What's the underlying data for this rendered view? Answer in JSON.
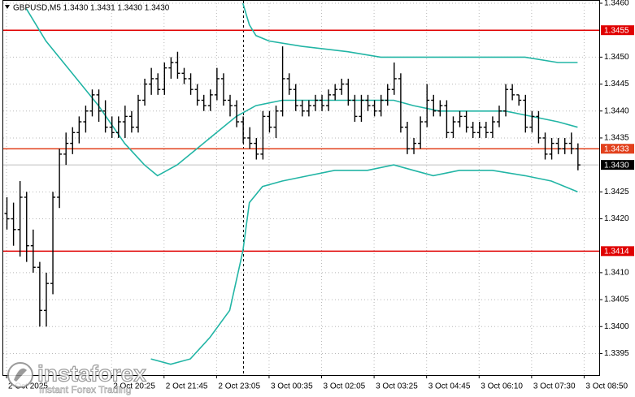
{
  "chart_data": {
    "type": "ohlc",
    "title": "GBPUSD,M5  1.3430 1.3431 1.3430 1.3430",
    "bar_color": "#000000",
    "ohlc": [
      [
        1.3421,
        1.3424,
        1.3418,
        1.342
      ],
      [
        1.342,
        1.3423,
        1.3415,
        1.3418
      ],
      [
        1.3418,
        1.3427,
        1.3413,
        1.3424
      ],
      [
        1.3424,
        1.3425,
        1.3412,
        1.3415
      ],
      [
        1.3415,
        1.3418,
        1.341,
        1.3411
      ],
      [
        1.3411,
        1.3412,
        1.34,
        1.3403
      ],
      [
        1.3403,
        1.341,
        1.34,
        1.3408
      ],
      [
        1.3408,
        1.3425,
        1.3406,
        1.3424
      ],
      [
        1.3424,
        1.3433,
        1.3422,
        1.3432
      ],
      [
        1.3432,
        1.3436,
        1.343,
        1.3434
      ],
      [
        1.3434,
        1.3437,
        1.3432,
        1.3436
      ],
      [
        1.3436,
        1.3439,
        1.3434,
        1.3438
      ],
      [
        1.3438,
        1.3441,
        1.3436,
        1.344
      ],
      [
        1.344,
        1.3444,
        1.3439,
        1.3443
      ],
      [
        1.3443,
        1.3444,
        1.3438,
        1.344
      ],
      [
        1.344,
        1.3442,
        1.3436,
        1.3437
      ],
      [
        1.3437,
        1.3439,
        1.3435,
        1.3436
      ],
      [
        1.3436,
        1.3439,
        1.3435,
        1.3438
      ],
      [
        1.3438,
        1.3441,
        1.3435,
        1.3439
      ],
      [
        1.3439,
        1.344,
        1.3436,
        1.3437
      ],
      [
        1.3437,
        1.3443,
        1.3436,
        1.3442
      ],
      [
        1.3442,
        1.3446,
        1.3441,
        1.3445
      ],
      [
        1.3445,
        1.3448,
        1.3443,
        1.3446
      ],
      [
        1.3446,
        1.3447,
        1.3443,
        1.3444
      ],
      [
        1.3444,
        1.3449,
        1.3443,
        1.3448
      ],
      [
        1.3448,
        1.345,
        1.3446,
        1.3449
      ],
      [
        1.3449,
        1.3451,
        1.3446,
        1.3447
      ],
      [
        1.3447,
        1.3448,
        1.3445,
        1.3446
      ],
      [
        1.3446,
        1.3447,
        1.3443,
        1.3444
      ],
      [
        1.3444,
        1.3445,
        1.3441,
        1.3442
      ],
      [
        1.3442,
        1.3443,
        1.344,
        1.3441
      ],
      [
        1.3441,
        1.3444,
        1.344,
        1.3443
      ],
      [
        1.3443,
        1.3448,
        1.3442,
        1.3446
      ],
      [
        1.3446,
        1.3447,
        1.3441,
        1.3442
      ],
      [
        1.3442,
        1.3443,
        1.3439,
        1.3441
      ],
      [
        1.3441,
        1.3442,
        1.3437,
        1.3438
      ],
      [
        1.3438,
        1.3439,
        1.3434,
        1.3435
      ],
      [
        1.3435,
        1.3437,
        1.3433,
        1.3434
      ],
      [
        1.3434,
        1.3435,
        1.3431,
        1.3432
      ],
      [
        1.3432,
        1.344,
        1.3431,
        1.3439
      ],
      [
        1.3439,
        1.344,
        1.3436,
        1.3437
      ],
      [
        1.3437,
        1.3441,
        1.3435,
        1.344
      ],
      [
        1.344,
        1.3452,
        1.3439,
        1.3446
      ],
      [
        1.3446,
        1.3447,
        1.3443,
        1.3444
      ],
      [
        1.3444,
        1.3445,
        1.344,
        1.3441
      ],
      [
        1.3441,
        1.3442,
        1.3439,
        1.344
      ],
      [
        1.344,
        1.3442,
        1.3439,
        1.3441
      ],
      [
        1.3441,
        1.3443,
        1.344,
        1.3442
      ],
      [
        1.3442,
        1.3443,
        1.344,
        1.3441
      ],
      [
        1.3441,
        1.3444,
        1.344,
        1.3443
      ],
      [
        1.3443,
        1.3445,
        1.3442,
        1.3444
      ],
      [
        1.3444,
        1.3446,
        1.3443,
        1.3445
      ],
      [
        1.3445,
        1.3446,
        1.3441,
        1.3442
      ],
      [
        1.3442,
        1.3443,
        1.3438,
        1.3439
      ],
      [
        1.3439,
        1.3443,
        1.3438,
        1.3442
      ],
      [
        1.3442,
        1.3443,
        1.344,
        1.3441
      ],
      [
        1.3441,
        1.3442,
        1.3439,
        1.344
      ],
      [
        1.344,
        1.3443,
        1.3439,
        1.3442
      ],
      [
        1.3442,
        1.3445,
        1.3441,
        1.3444
      ],
      [
        1.3444,
        1.3449,
        1.3443,
        1.3446
      ],
      [
        1.3446,
        1.3447,
        1.3436,
        1.3437
      ],
      [
        1.3437,
        1.3438,
        1.3432,
        1.3433
      ],
      [
        1.3433,
        1.3435,
        1.3432,
        1.3434
      ],
      [
        1.3434,
        1.3439,
        1.3433,
        1.3438
      ],
      [
        1.3438,
        1.3445,
        1.3437,
        1.3442
      ],
      [
        1.3442,
        1.3443,
        1.3439,
        1.344
      ],
      [
        1.344,
        1.3442,
        1.3439,
        1.3441
      ],
      [
        1.3441,
        1.3442,
        1.3435,
        1.3436
      ],
      [
        1.3436,
        1.3439,
        1.3435,
        1.3438
      ],
      [
        1.3438,
        1.344,
        1.3437,
        1.3439
      ],
      [
        1.3439,
        1.344,
        1.3436,
        1.3437
      ],
      [
        1.3437,
        1.3438,
        1.3435,
        1.3436
      ],
      [
        1.3436,
        1.3438,
        1.3435,
        1.3437
      ],
      [
        1.3437,
        1.3438,
        1.3435,
        1.3436
      ],
      [
        1.3436,
        1.3439,
        1.3435,
        1.3438
      ],
      [
        1.3438,
        1.3441,
        1.3437,
        1.344
      ],
      [
        1.344,
        1.3445,
        1.3439,
        1.3444
      ],
      [
        1.3444,
        1.3445,
        1.3442,
        1.3443
      ],
      [
        1.3443,
        1.3443,
        1.3441,
        1.3442
      ],
      [
        1.3442,
        1.3443,
        1.3436,
        1.3437
      ],
      [
        1.3437,
        1.344,
        1.3436,
        1.3439
      ],
      [
        1.3439,
        1.344,
        1.3434,
        1.3435
      ],
      [
        1.3435,
        1.3436,
        1.3431,
        1.3432
      ],
      [
        1.3432,
        1.3435,
        1.3431,
        1.3434
      ],
      [
        1.3434,
        1.3435,
        1.3432,
        1.3433
      ],
      [
        1.3433,
        1.3435,
        1.3432,
        1.3434
      ],
      [
        1.3434,
        1.3436,
        1.3432,
        1.3433
      ],
      [
        1.3433,
        1.3434,
        1.3429,
        1.343
      ]
    ],
    "bands": [
      {
        "color": "#22b5a5",
        "x": [
          36,
          37,
          38,
          40,
          45,
          52,
          57,
          66,
          75,
          79,
          84,
          87
        ],
        "values": [
          1.346,
          1.3456,
          1.3454,
          1.3453,
          1.3452,
          1.3451,
          1.345,
          1.345,
          1.345,
          1.345,
          1.3449,
          1.3449
        ]
      },
      {
        "color": "#22b5a5",
        "x": [
          3,
          6,
          10,
          14,
          18,
          21,
          23,
          26,
          29,
          32,
          35,
          38,
          42,
          48,
          54,
          59,
          62,
          66,
          72,
          76,
          80,
          84,
          87
        ],
        "values": [
          1.3459,
          1.3453,
          1.3447,
          1.3441,
          1.3434,
          1.343,
          1.3428,
          1.343,
          1.3433,
          1.3436,
          1.3439,
          1.3441,
          1.3442,
          1.3442,
          1.3442,
          1.3442,
          1.3441,
          1.344,
          1.344,
          1.344,
          1.3439,
          1.3438,
          1.3437
        ]
      },
      {
        "color": "#22b5a5",
        "x": [
          22,
          25,
          28,
          31,
          34,
          36,
          37,
          39,
          42,
          46,
          50,
          55,
          59,
          62,
          65,
          69,
          74,
          79,
          83,
          87
        ],
        "values": [
          1.3394,
          1.3393,
          1.3394,
          1.3398,
          1.3403,
          1.3414,
          1.3423,
          1.3426,
          1.3427,
          1.3428,
          1.3429,
          1.3429,
          1.343,
          1.3429,
          1.3428,
          1.3429,
          1.3429,
          1.3428,
          1.3427,
          1.3425
        ]
      }
    ],
    "levels": [
      {
        "value": 1.3455,
        "label": "1.3455",
        "color": "#e00000"
      },
      {
        "value": 1.3433,
        "label": "1.3433",
        "color": "#e2401c"
      },
      {
        "value": 1.3414,
        "label": "1.3414",
        "color": "#e00000"
      },
      {
        "value": 1.343,
        "label": "1.3430",
        "color": "#000000"
      }
    ],
    "xlim": [
      -0.5,
      90.3
    ],
    "ylim": [
      1.3391,
      1.346
    ],
    "xticks": [
      {
        "value": 0,
        "label": "2 Oct 2025"
      },
      {
        "value": 16,
        "label": "2 Oct 20:25"
      },
      {
        "value": 24,
        "label": "2 Oct 21:45"
      },
      {
        "value": 32,
        "label": "2 Oct 23:05"
      },
      {
        "value": 40,
        "label": "3 Oct 00:35"
      },
      {
        "value": 48,
        "label": "3 Oct 02:05"
      },
      {
        "value": 56,
        "label": "3 Oct 03:25"
      },
      {
        "value": 64,
        "label": "3 Oct 04:45"
      },
      {
        "value": 72,
        "label": "3 Oct 06:10"
      },
      {
        "value": 80,
        "label": "3 Oct 07:30"
      },
      {
        "value": 88,
        "label": "3 Oct 08:50"
      }
    ],
    "yticks": [
      {
        "value": 1.346,
        "label": "1.3460"
      },
      {
        "value": 1.345,
        "label": "1.3450"
      },
      1.3445,
      {
        "value": 1.344,
        "label": "1.3440"
      },
      1.3435,
      1.3425,
      {
        "value": 1.342,
        "label": "1.3420"
      },
      {
        "value": 1.341,
        "label": "1.3410"
      },
      1.3405,
      {
        "value": 1.34,
        "label": "1.3400"
      },
      1.3395
    ],
    "grid": true,
    "watermark": {
      "brand": "instaforex",
      "tagline": "Instant Forex Trading"
    }
  }
}
